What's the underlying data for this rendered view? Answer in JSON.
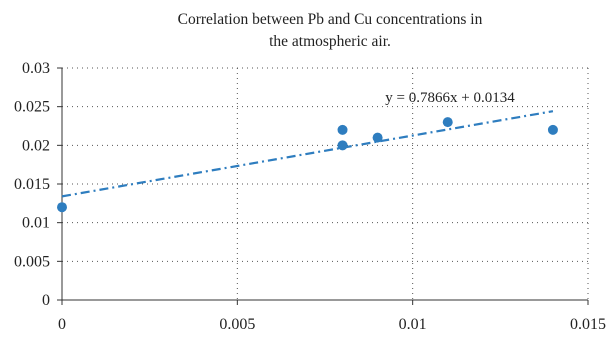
{
  "chart_data": {
    "type": "scatter",
    "title_lines": [
      "Correlation between Pb and Cu concentrations in",
      "the atmospheric air."
    ],
    "xlabel": "",
    "ylabel": "",
    "xlim": [
      0,
      0.015
    ],
    "ylim": [
      0,
      0.03
    ],
    "x_ticks": [
      "0",
      "0.005",
      "0.01",
      "0.015"
    ],
    "y_ticks": [
      "0",
      "0.005",
      "0.01",
      "0.015",
      "0.02",
      "0.025",
      "0.03"
    ],
    "x_tick_values": [
      0,
      0.005,
      0.01,
      0.015
    ],
    "y_tick_values": [
      0,
      0.005,
      0.01,
      0.015,
      0.02,
      0.025,
      0.03
    ],
    "grid": "dotted",
    "series": [
      {
        "points": [
          {
            "x": 0.0,
            "y": 0.012
          },
          {
            "x": 0.008,
            "y": 0.022
          },
          {
            "x": 0.008,
            "y": 0.02
          },
          {
            "x": 0.009,
            "y": 0.021
          },
          {
            "x": 0.011,
            "y": 0.023
          },
          {
            "x": 0.014,
            "y": 0.022
          }
        ],
        "color": "#2e7dbf"
      }
    ],
    "trendline": {
      "slope": 0.7866,
      "intercept": 0.0134,
      "x_range": [
        0,
        0.014
      ],
      "style": "dash-dot",
      "color": "#2e7dbf",
      "equation_label": "y = 0.7866x + 0.0134"
    }
  }
}
